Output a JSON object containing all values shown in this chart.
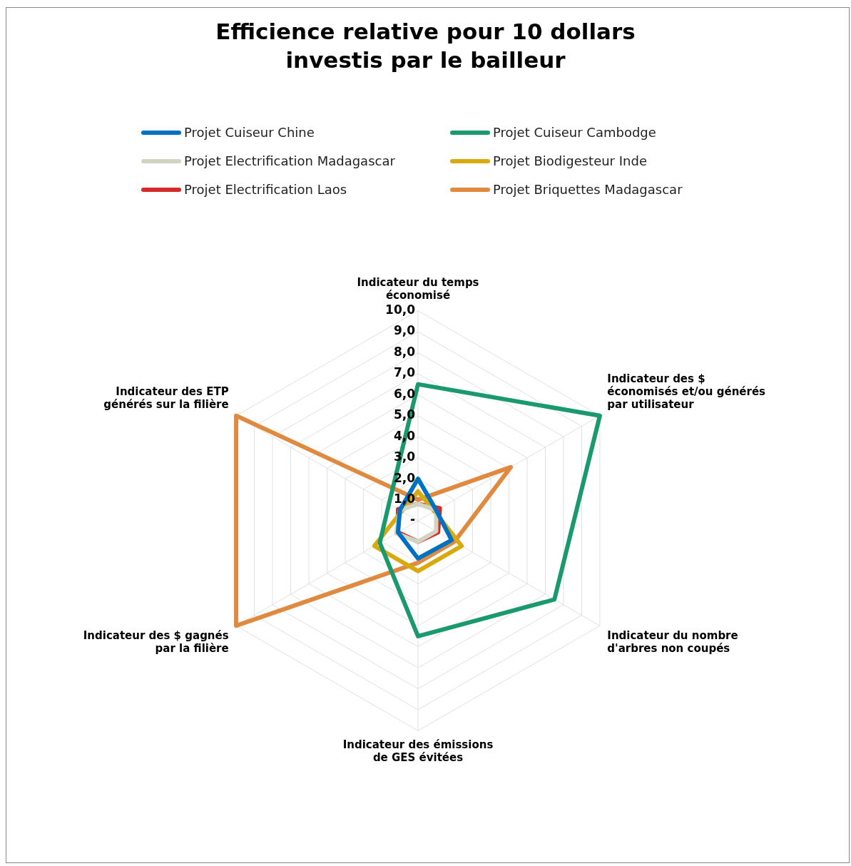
{
  "chart_data": {
    "type": "radar",
    "title": "Efficience relative pour 10 dollars\ninvestis par le bailleur",
    "categories": [
      "Indicateur du temps\néconomisé",
      "Indicateur des $\néconomisés et/ou générés\npar utilisateur",
      "Indicateur du nombre\nd'arbres non coupés",
      "Indicateur des émissions\nde GES évitées",
      "Indicateur des $ gagnés\npar la filière",
      "Indicateur des ETP\ngénérés sur la filière"
    ],
    "series": [
      {
        "name": "Projet Cuiseur Chine",
        "color": "#0070c0",
        "values": [
          2.0,
          1.0,
          1.85,
          1.8,
          1.1,
          1.0
        ]
      },
      {
        "name": "Projet Cuiseur Cambodge",
        "color": "#1a9a6c",
        "values": [
          6.5,
          10.0,
          7.5,
          5.5,
          2.1,
          1.6
        ]
      },
      {
        "name": "Projet Electrification Madagascar",
        "color": "#d0d4c0",
        "values": [
          0.8,
          1.0,
          1.0,
          1.0,
          1.2,
          1.0
        ]
      },
      {
        "name": "Projet Biodigesteur Inde",
        "color": "#d9aa10",
        "values": [
          1.4,
          0.9,
          2.4,
          2.4,
          2.4,
          0.9
        ]
      },
      {
        "name": "Projet Electrification Laos",
        "color": "#d42a2a",
        "values": [
          0.8,
          1.2,
          1.1,
          1.0,
          1.1,
          1.1
        ]
      },
      {
        "name": "Projet Briquettes Madagascar",
        "color": "#e08a40",
        "values": [
          1.0,
          5.1,
          2.0,
          2.0,
          10.0,
          10.0
        ]
      }
    ],
    "ylim": [
      0,
      10
    ],
    "yticks": [
      {
        "value": 0,
        "label": "-"
      },
      {
        "value": 1,
        "label": "1,0"
      },
      {
        "value": 2,
        "label": "2,0"
      },
      {
        "value": 3,
        "label": "3,0"
      },
      {
        "value": 4,
        "label": "4,0"
      },
      {
        "value": 5,
        "label": "5,0"
      },
      {
        "value": 6,
        "label": "6,0"
      },
      {
        "value": 7,
        "label": "7,0"
      },
      {
        "value": 8,
        "label": "8,0"
      },
      {
        "value": 9,
        "label": "9,0"
      },
      {
        "value": 10,
        "label": "10,0"
      }
    ],
    "grid": true,
    "legend": "top",
    "marker": "none",
    "line_style": "solid"
  }
}
